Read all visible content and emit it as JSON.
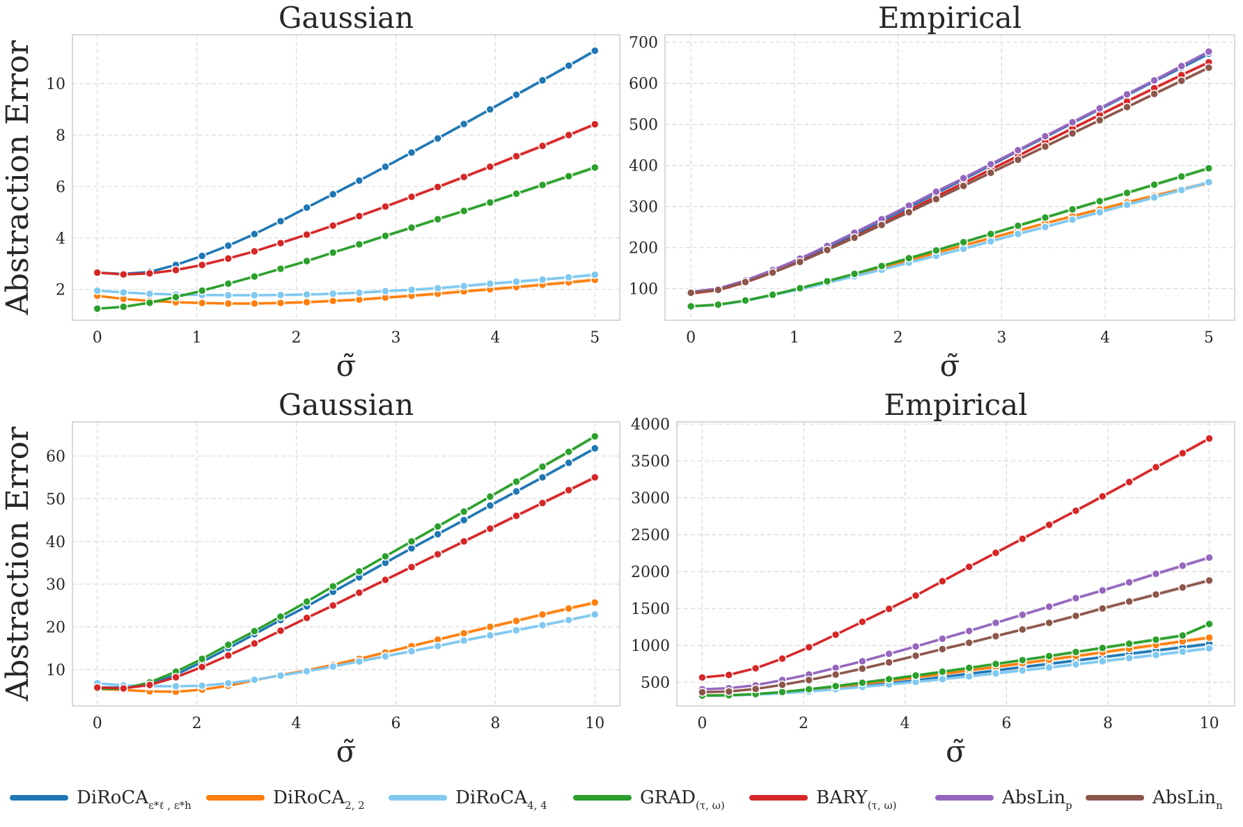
{
  "figure": {
    "ylabel": "Abstraction Error",
    "xlabel": "σ̃"
  },
  "legend": [
    {
      "key": "diroca_eps",
      "base": "DiRoCA",
      "sub": "ε*ℓ , ε*h",
      "color": "#1f77b4"
    },
    {
      "key": "diroca_22",
      "base": "DiRoCA",
      "sub": "2, 2",
      "color": "#ff7f0e"
    },
    {
      "key": "diroca_44",
      "base": "DiRoCA",
      "sub": "4, 4",
      "color": "#7fc8f0"
    },
    {
      "key": "grad",
      "base": "GRAD",
      "sub": "(τ, ω)",
      "color": "#2ca02c"
    },
    {
      "key": "bary",
      "base": "BARY",
      "sub": "(τ, ω)",
      "color": "#d62728"
    },
    {
      "key": "abslin_p",
      "base": "AbsLin",
      "sub": "p",
      "color": "#9467bd"
    },
    {
      "key": "abslin_n",
      "base": "AbsLin",
      "sub": "n",
      "color": "#8c564b"
    }
  ],
  "chart_data": [
    {
      "type": "line",
      "title": "Gaussian",
      "xlabel": "σ̃",
      "ylabel": "Abstraction Error",
      "xlim": [
        -0.25,
        5.25
      ],
      "ylim": [
        0.8,
        11.9
      ],
      "xticks": [
        0,
        1,
        2,
        3,
        4,
        5
      ],
      "yticks": [
        2,
        4,
        6,
        8,
        10
      ],
      "grid": true,
      "x": [
        0,
        0.263,
        0.526,
        0.789,
        1.053,
        1.316,
        1.579,
        1.842,
        2.105,
        2.368,
        2.632,
        2.895,
        3.158,
        3.421,
        3.684,
        3.947,
        4.211,
        4.474,
        4.737,
        5.0
      ],
      "series": [
        {
          "key": "diroca_eps",
          "values": [
            2.65,
            2.6,
            2.68,
            2.95,
            3.3,
            3.7,
            4.15,
            4.65,
            5.18,
            5.7,
            6.23,
            6.77,
            7.32,
            7.87,
            8.43,
            9.0,
            9.57,
            10.13,
            10.7,
            11.28
          ]
        },
        {
          "key": "diroca_22",
          "values": [
            1.75,
            1.63,
            1.55,
            1.5,
            1.47,
            1.45,
            1.45,
            1.47,
            1.5,
            1.55,
            1.6,
            1.68,
            1.75,
            1.83,
            1.92,
            2.0,
            2.09,
            2.18,
            2.27,
            2.37
          ]
        },
        {
          "key": "diroca_44",
          "values": [
            1.95,
            1.88,
            1.83,
            1.8,
            1.78,
            1.77,
            1.77,
            1.78,
            1.8,
            1.83,
            1.87,
            1.93,
            1.98,
            2.05,
            2.13,
            2.22,
            2.3,
            2.38,
            2.47,
            2.57
          ]
        },
        {
          "key": "grad",
          "values": [
            1.25,
            1.32,
            1.48,
            1.7,
            1.95,
            2.22,
            2.5,
            2.8,
            3.1,
            3.43,
            3.75,
            4.08,
            4.4,
            4.73,
            5.05,
            5.38,
            5.72,
            6.06,
            6.4,
            6.74
          ]
        },
        {
          "key": "bary",
          "values": [
            2.65,
            2.58,
            2.62,
            2.75,
            2.95,
            3.2,
            3.48,
            3.8,
            4.13,
            4.48,
            4.85,
            5.22,
            5.6,
            5.98,
            6.37,
            6.77,
            7.18,
            7.58,
            8.0,
            8.42
          ]
        }
      ]
    },
    {
      "type": "line",
      "title": "Empirical",
      "xlabel": "σ̃",
      "ylabel": "",
      "xlim": [
        -0.25,
        5.25
      ],
      "ylim": [
        23,
        718
      ],
      "xticks": [
        0,
        1,
        2,
        3,
        4,
        5
      ],
      "yticks": [
        100,
        200,
        300,
        400,
        500,
        600,
        700
      ],
      "grid": true,
      "x": [
        0,
        0.263,
        0.526,
        0.789,
        1.053,
        1.316,
        1.579,
        1.842,
        2.105,
        2.368,
        2.632,
        2.895,
        3.158,
        3.421,
        3.684,
        3.947,
        4.211,
        4.474,
        4.737,
        5.0
      ],
      "series": [
        {
          "key": "diroca_eps",
          "values": [
            90,
            98,
            118,
            142,
            170,
            200,
            232,
            265,
            298,
            332,
            366,
            400,
            435,
            469,
            503,
            537,
            571,
            605,
            638,
            672
          ]
        },
        {
          "key": "diroca_22",
          "values": [
            57,
            61,
            70,
            84,
            100,
            117,
            134,
            151,
            169,
            187,
            205,
            223,
            241,
            259,
            276,
            293,
            310,
            326,
            342,
            357
          ]
        },
        {
          "key": "diroca_44",
          "values": [
            57,
            60,
            70,
            84,
            98,
            114,
            130,
            146,
            163,
            180,
            197,
            215,
            233,
            250,
            268,
            286,
            304,
            322,
            340,
            359
          ]
        },
        {
          "key": "grad",
          "values": [
            57,
            61,
            71,
            85,
            101,
            118,
            136,
            155,
            174,
            193,
            213,
            233,
            253,
            273,
            293,
            313,
            333,
            353,
            373,
            393
          ]
        },
        {
          "key": "bary",
          "values": [
            88,
            96,
            115,
            139,
            166,
            195,
            226,
            258,
            291,
            324,
            357,
            390,
            423,
            457,
            490,
            523,
            556,
            588,
            620,
            651
          ]
        },
        {
          "key": "abslin_p",
          "values": [
            92,
            100,
            120,
            145,
            173,
            204,
            236,
            269,
            302,
            336,
            369,
            403,
            437,
            471,
            505,
            539,
            573,
            607,
            642,
            677
          ]
        },
        {
          "key": "abslin_n",
          "values": [
            90,
            97,
            116,
            139,
            165,
            194,
            224,
            255,
            286,
            318,
            350,
            382,
            414,
            446,
            478,
            510,
            542,
            574,
            606,
            638
          ]
        }
      ]
    },
    {
      "type": "line",
      "title": "Gaussian",
      "xlabel": "σ̃",
      "ylabel": "Abstraction Error",
      "xlim": [
        -0.5,
        10.5
      ],
      "ylim": [
        1.5,
        68
      ],
      "xticks": [
        0,
        2,
        4,
        6,
        8,
        10
      ],
      "yticks": [
        10,
        20,
        30,
        40,
        50,
        60
      ],
      "grid": true,
      "x": [
        0,
        0.526,
        1.053,
        1.579,
        2.105,
        2.632,
        3.158,
        3.684,
        4.211,
        4.737,
        5.263,
        5.789,
        6.316,
        6.842,
        7.368,
        7.895,
        8.421,
        8.947,
        9.474,
        10.0
      ],
      "series": [
        {
          "key": "diroca_eps",
          "values": [
            5.8,
            5.8,
            6.5,
            8.8,
            11.8,
            15.0,
            18.3,
            21.6,
            24.8,
            28.2,
            31.6,
            35.0,
            38.4,
            41.7,
            45.0,
            48.4,
            51.7,
            55.0,
            58.4,
            61.8
          ]
        },
        {
          "key": "diroca_22",
          "values": [
            5.5,
            5.2,
            4.9,
            4.8,
            5.3,
            6.2,
            7.5,
            8.7,
            9.8,
            11.1,
            12.5,
            14.0,
            15.5,
            17.0,
            18.5,
            20.0,
            21.4,
            22.9,
            24.3,
            25.7
          ]
        },
        {
          "key": "diroca_44",
          "values": [
            6.8,
            6.3,
            6.1,
            6.1,
            6.2,
            6.8,
            7.6,
            8.6,
            9.6,
            10.7,
            11.9,
            13.1,
            14.3,
            15.5,
            16.8,
            18.0,
            19.2,
            20.4,
            21.6,
            22.9
          ]
        },
        {
          "key": "grad",
          "values": [
            5.5,
            5.5,
            7.0,
            9.5,
            12.5,
            15.8,
            19.0,
            22.4,
            25.9,
            29.5,
            33.0,
            36.5,
            40.0,
            43.5,
            47.0,
            50.5,
            54.0,
            57.5,
            61.0,
            64.6
          ]
        },
        {
          "key": "bary",
          "values": [
            5.8,
            5.6,
            6.4,
            8.2,
            10.6,
            13.3,
            16.1,
            19.1,
            22.1,
            25.0,
            28.0,
            31.0,
            34.0,
            37.0,
            40.0,
            43.0,
            46.0,
            49.0,
            52.0,
            55.0
          ]
        }
      ]
    },
    {
      "type": "line",
      "title": "Empirical",
      "xlabel": "σ̃",
      "ylabel": "",
      "xlim": [
        -0.5,
        10.5
      ],
      "ylim": [
        180,
        4030
      ],
      "xticks": [
        0,
        2,
        4,
        6,
        8,
        10
      ],
      "yticks": [
        500,
        1000,
        1500,
        2000,
        2500,
        3000,
        3500,
        4000
      ],
      "grid": true,
      "x": [
        0,
        0.526,
        1.053,
        1.579,
        2.105,
        2.632,
        3.158,
        3.684,
        4.211,
        4.737,
        5.263,
        5.789,
        6.316,
        6.842,
        7.368,
        7.895,
        8.421,
        8.947,
        9.474,
        10.0
      ],
      "series": [
        {
          "key": "diroca_eps",
          "values": [
            320,
            322,
            335,
            355,
            380,
            410,
            445,
            485,
            525,
            570,
            615,
            660,
            705,
            750,
            795,
            840,
            885,
            930,
            975,
            1020
          ]
        },
        {
          "key": "diroca_22",
          "values": [
            320,
            322,
            338,
            362,
            395,
            435,
            478,
            522,
            566,
            612,
            660,
            708,
            757,
            806,
            855,
            905,
            955,
            1005,
            1055,
            1105
          ]
        },
        {
          "key": "diroca_44",
          "values": [
            320,
            320,
            332,
            350,
            375,
            405,
            437,
            470,
            505,
            542,
            580,
            620,
            660,
            700,
            742,
            785,
            828,
            870,
            915,
            960
          ]
        },
        {
          "key": "grad",
          "values": [
            320,
            324,
            340,
            368,
            405,
            448,
            494,
            542,
            592,
            643,
            695,
            748,
            801,
            855,
            910,
            966,
            1022,
            1078,
            1134,
            1290
          ]
        },
        {
          "key": "bary",
          "values": [
            565,
            600,
            690,
            820,
            975,
            1145,
            1320,
            1495,
            1675,
            1870,
            2065,
            2255,
            2445,
            2635,
            2825,
            3020,
            3215,
            3415,
            3605,
            3805
          ]
        },
        {
          "key": "abslin_p",
          "values": [
            405,
            420,
            460,
            530,
            605,
            695,
            785,
            885,
            985,
            1090,
            1195,
            1305,
            1415,
            1525,
            1640,
            1745,
            1855,
            1970,
            2080,
            2190
          ]
        },
        {
          "key": "abslin_n",
          "values": [
            365,
            375,
            410,
            465,
            530,
            605,
            685,
            770,
            860,
            950,
            1035,
            1125,
            1215,
            1305,
            1400,
            1500,
            1595,
            1690,
            1785,
            1880
          ]
        }
      ]
    }
  ]
}
